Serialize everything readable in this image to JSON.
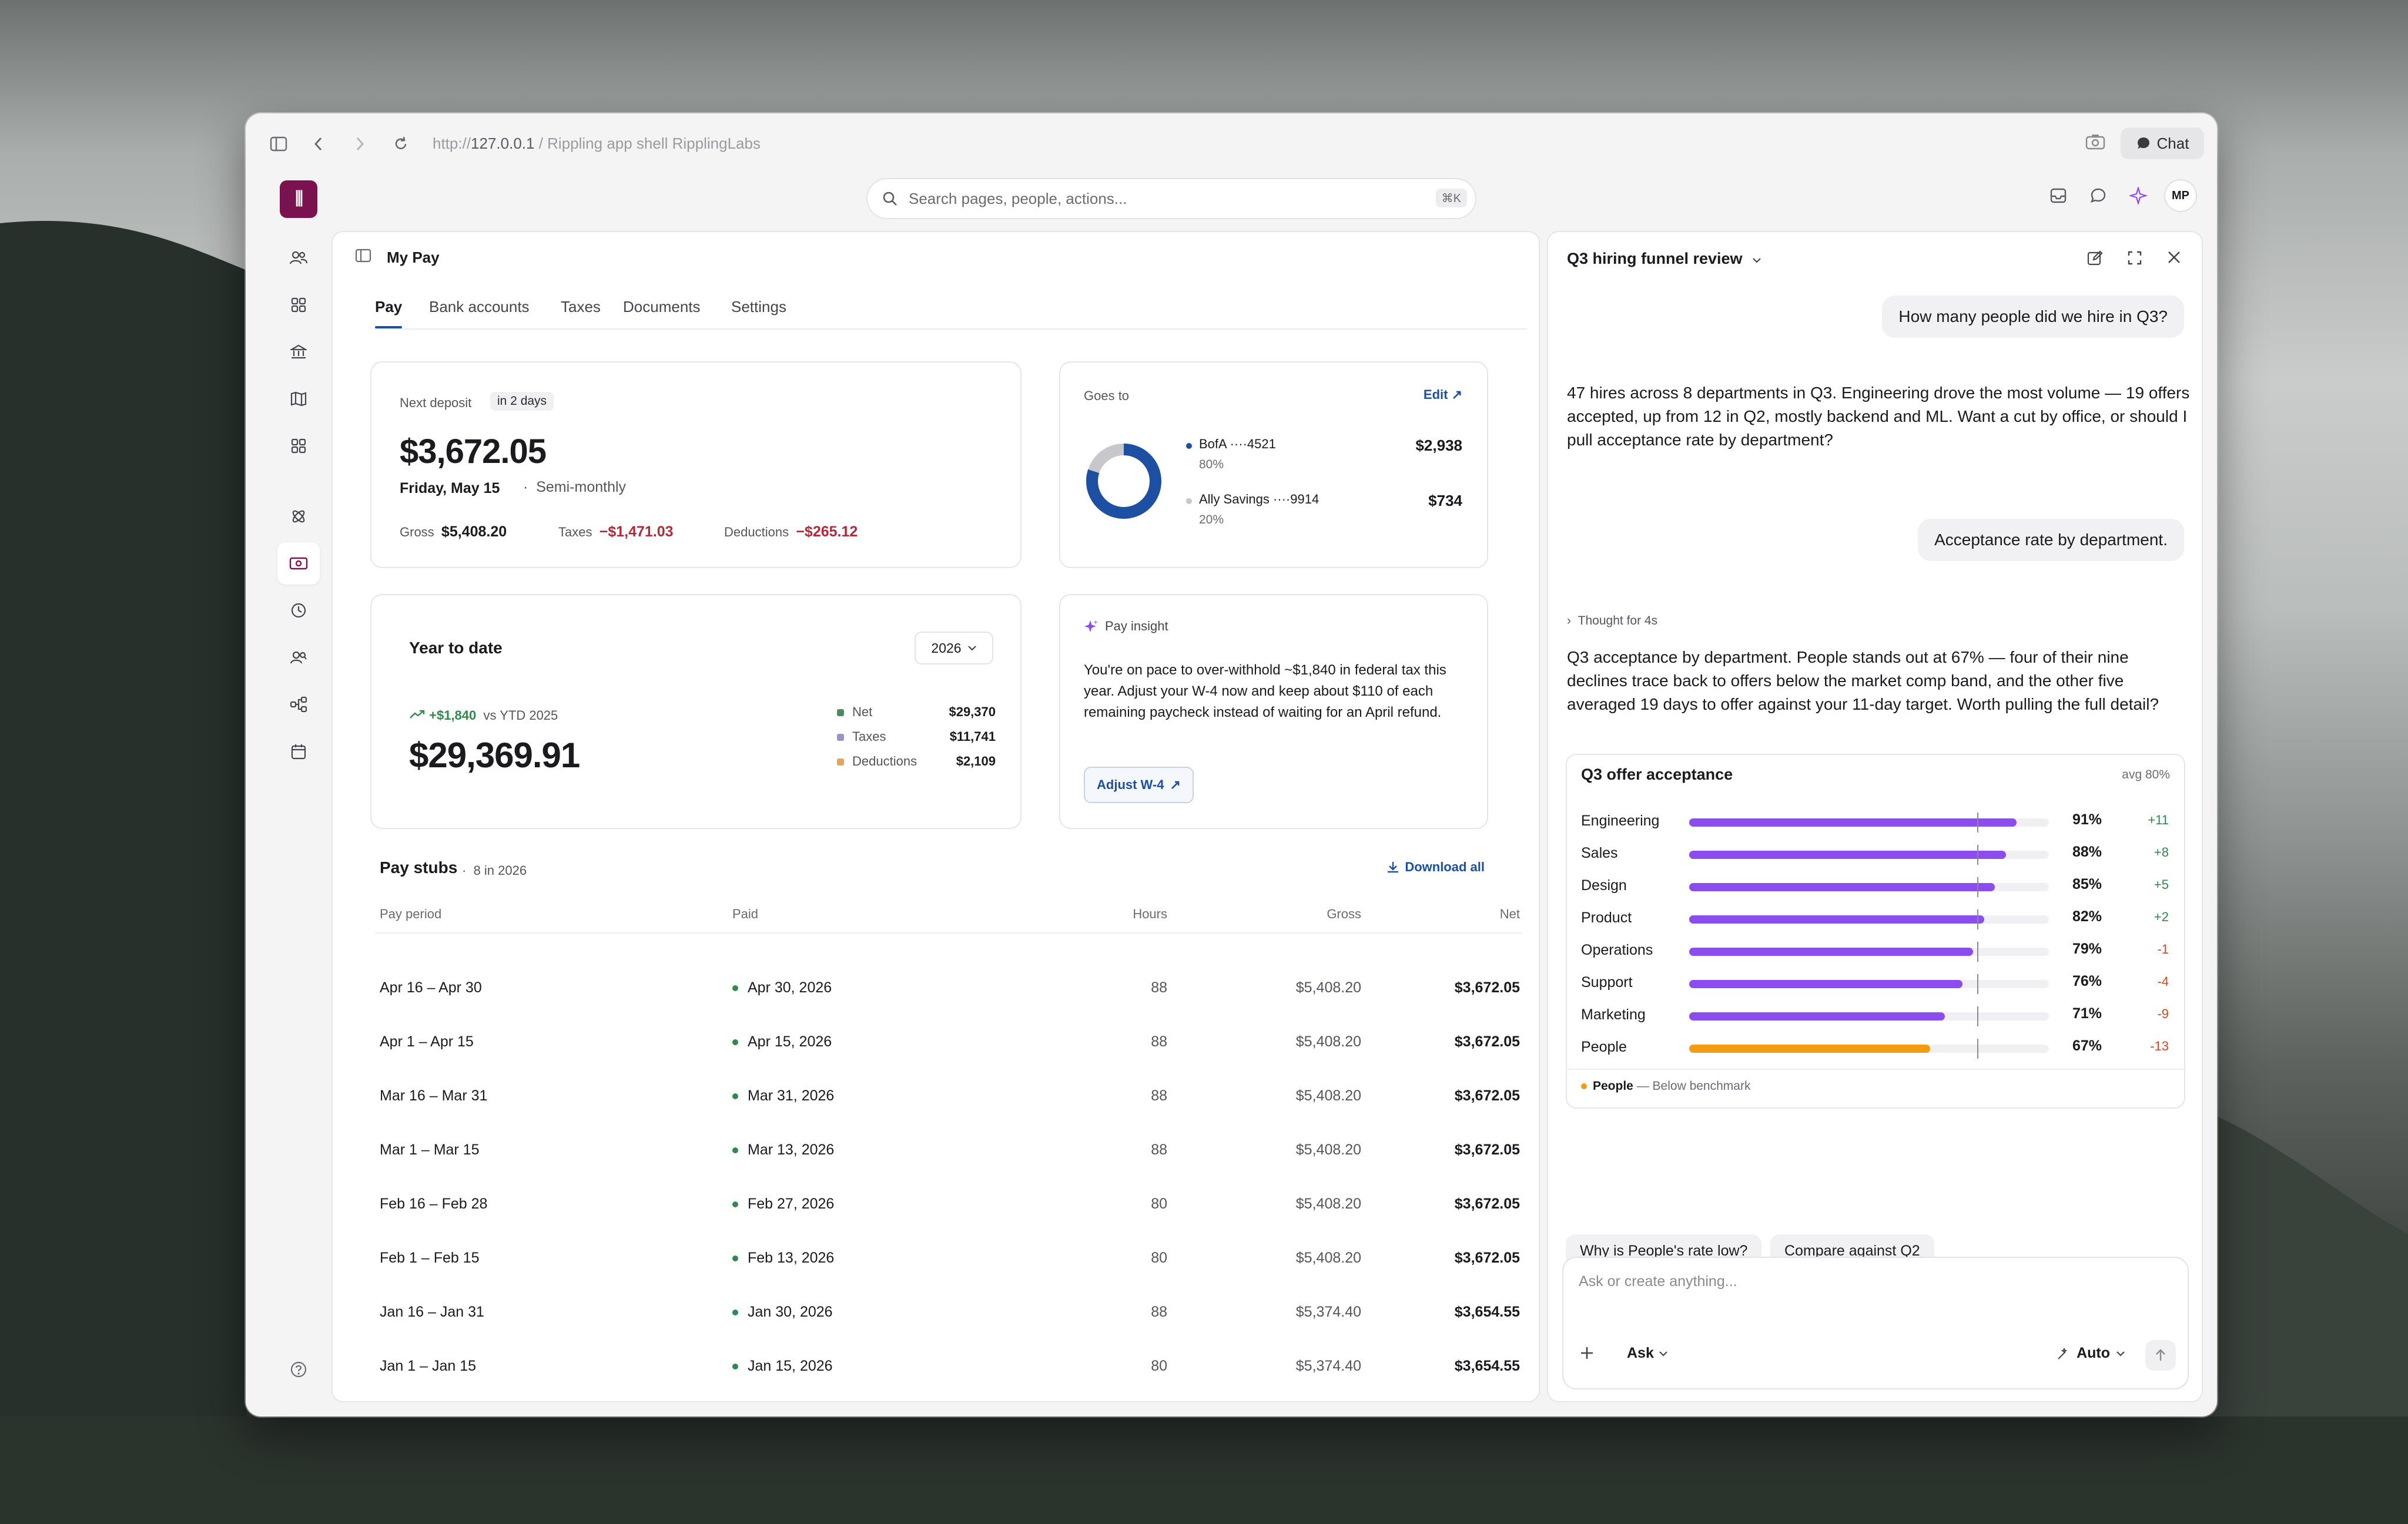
{
  "browser": {
    "url_prefix": "http://",
    "url_host": "127.0.0.1",
    "url_rest": " / Rippling app shell RipplingLabs",
    "chat_label": "Chat"
  },
  "app": {
    "search_placeholder": "Search pages, people, actions...",
    "search_shortcut": "⌘K",
    "avatar_initials": "MP"
  },
  "page": {
    "title": "My Pay",
    "tabs": [
      "Pay",
      "Bank accounts",
      "Taxes",
      "Documents",
      "Settings"
    ]
  },
  "next_deposit": {
    "label": "Next deposit",
    "badge": "in 2 days",
    "amount": "$3,672.05",
    "date": "Friday, May 15",
    "cadence": "Semi-monthly",
    "gross_label": "Gross",
    "gross": "$5,408.20",
    "taxes_label": "Taxes",
    "taxes": "−$1,471.03",
    "deductions_label": "Deductions",
    "deductions": "−$265.12"
  },
  "goes_to": {
    "label": "Goes to",
    "edit": "Edit",
    "accounts": [
      {
        "name": "BofA ····4521",
        "pct": "80%",
        "amount": "$2,938",
        "color": "#1d4fa3",
        "share": 0.8
      },
      {
        "name": "Ally Savings ····9914",
        "pct": "20%",
        "amount": "$734",
        "color": "#c8c8cc",
        "share": 0.2
      }
    ]
  },
  "ytd": {
    "title": "Year to date",
    "year": "2026",
    "delta": "+$1,840",
    "vs": "vs YTD 2025",
    "amount": "$29,369.91",
    "legend": [
      {
        "label": "Net",
        "value": "$29,370",
        "color": "#4f8a5d"
      },
      {
        "label": "Taxes",
        "value": "$11,741",
        "color": "#9b93c4"
      },
      {
        "label": "Deductions",
        "value": "$2,109",
        "color": "#e0a75e"
      }
    ]
  },
  "insight": {
    "title": "Pay insight",
    "body": "You're on pace to over-withhold ~$1,840 in federal tax this year. Adjust your W-4 now and keep about $110 of each remaining paycheck instead of waiting for an April refund.",
    "button": "Adjust W-4"
  },
  "stubs": {
    "title": "Pay stubs",
    "count": "8 in 2026",
    "download": "Download all",
    "headers": [
      "Pay period",
      "Paid",
      "Hours",
      "Gross",
      "Net"
    ],
    "rows": [
      [
        "Apr 16 – Apr 30",
        "Apr 30, 2026",
        "88",
        "$5,408.20",
        "$3,672.05"
      ],
      [
        "Apr 1 – Apr 15",
        "Apr 15, 2026",
        "88",
        "$5,408.20",
        "$3,672.05"
      ],
      [
        "Mar 16 – Mar 31",
        "Mar 31, 2026",
        "88",
        "$5,408.20",
        "$3,672.05"
      ],
      [
        "Mar 1 – Mar 15",
        "Mar 13, 2026",
        "88",
        "$5,408.20",
        "$3,672.05"
      ],
      [
        "Feb 16 – Feb 28",
        "Feb 27, 2026",
        "80",
        "$5,408.20",
        "$3,672.05"
      ],
      [
        "Feb 1 – Feb 15",
        "Feb 13, 2026",
        "80",
        "$5,408.20",
        "$3,672.05"
      ],
      [
        "Jan 16 – Jan 31",
        "Jan 30, 2026",
        "88",
        "$5,374.40",
        "$3,654.55"
      ],
      [
        "Jan 1 – Jan 15",
        "Jan 15, 2026",
        "80",
        "$5,374.40",
        "$3,654.55"
      ]
    ]
  },
  "chat": {
    "title": "Q3 hiring funnel review",
    "q1": "How many people did we hire in Q3?",
    "a1": "47 hires across 8 departments in Q3. Engineering drove the most volume — 19 offers accepted, up from 12 in Q2, mostly backend and ML. Want a cut by office, or should I pull acceptance rate by department?",
    "q2": "Acceptance rate by department.",
    "thought": "Thought for 4s",
    "a2": "Q3 acceptance by department. People stands out at 67% — four of their nine declines trace back to offers below the market comp band, and the other five averaged 19 days to offer against your 11-day target. Worth pulling the full detail?",
    "suggestions": [
      "Why is People's rate low?",
      "Compare against Q2"
    ],
    "composer_placeholder": "Ask or create anything...",
    "mode": "Ask",
    "model": "Auto"
  },
  "chart_data": {
    "type": "bar",
    "title": "Q3 offer acceptance",
    "avg_label": "avg 80%",
    "benchmark": 80,
    "categories": [
      "Engineering",
      "Sales",
      "Design",
      "Product",
      "Operations",
      "Support",
      "Marketing",
      "People"
    ],
    "values": [
      91,
      88,
      85,
      82,
      79,
      76,
      71,
      67
    ],
    "value_labels": [
      "91%",
      "88%",
      "85%",
      "82%",
      "79%",
      "76%",
      "71%",
      "67%"
    ],
    "deltas": [
      "+11",
      "+8",
      "+5",
      "+2",
      "-1",
      "-4",
      "-9",
      "-13"
    ],
    "highlight": "People",
    "highlight_note": "— Below benchmark",
    "colors": {
      "normal": "#8b4cf0",
      "highlight": "#f39c12"
    }
  }
}
